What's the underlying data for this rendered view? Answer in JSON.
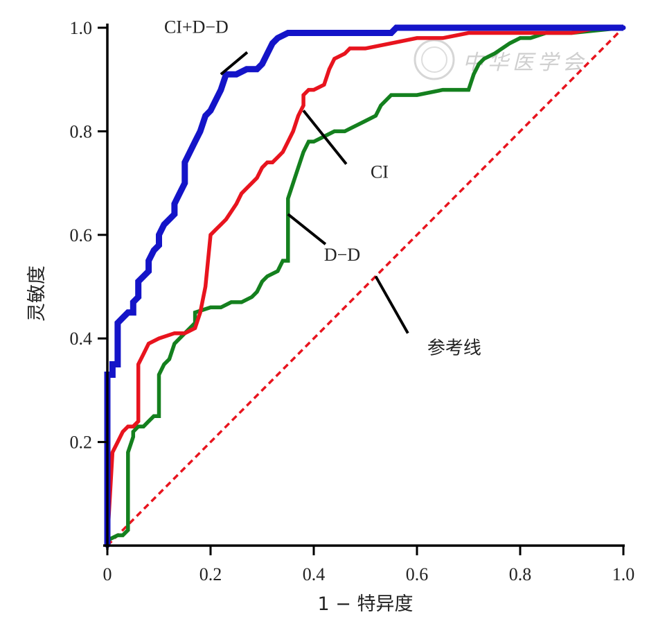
{
  "chart_data": {
    "type": "line",
    "xlabel": "1 − 特异度",
    "ylabel": "灵敏度",
    "xlim": [
      0,
      1.0
    ],
    "ylim": [
      0,
      1.0
    ],
    "x_ticks": [
      "0",
      "0.2",
      "0.4",
      "0.6",
      "0.8",
      "1.0"
    ],
    "y_ticks": [
      "0.2",
      "0.4",
      "0.6",
      "0.8",
      "1.0"
    ],
    "grid": false,
    "legend": "none",
    "series": [
      {
        "name": "CI+D−D",
        "color": "#1414c8",
        "x": [
          0,
          0,
          0.01,
          0.01,
          0.02,
          0.02,
          0.03,
          0.04,
          0.05,
          0.05,
          0.06,
          0.06,
          0.07,
          0.08,
          0.08,
          0.09,
          0.1,
          0.1,
          0.11,
          0.12,
          0.13,
          0.13,
          0.14,
          0.15,
          0.15,
          0.16,
          0.17,
          0.18,
          0.19,
          0.2,
          0.21,
          0.22,
          0.23,
          0.25,
          0.27,
          0.29,
          0.3,
          0.31,
          0.32,
          0.33,
          0.35,
          0.36,
          0.38,
          0.4,
          0.45,
          0.5,
          0.55,
          0.56,
          0.6,
          0.7,
          0.8,
          0.9,
          1.0
        ],
        "y": [
          0,
          0.33,
          0.33,
          0.35,
          0.35,
          0.43,
          0.44,
          0.45,
          0.45,
          0.47,
          0.48,
          0.51,
          0.52,
          0.53,
          0.55,
          0.57,
          0.58,
          0.6,
          0.62,
          0.63,
          0.64,
          0.66,
          0.68,
          0.7,
          0.74,
          0.76,
          0.78,
          0.8,
          0.83,
          0.84,
          0.86,
          0.88,
          0.91,
          0.91,
          0.92,
          0.92,
          0.93,
          0.95,
          0.97,
          0.98,
          0.99,
          0.99,
          0.99,
          0.99,
          0.99,
          0.99,
          0.99,
          1.0,
          1.0,
          1.0,
          1.0,
          1.0,
          1.0
        ]
      },
      {
        "name": "CI",
        "color": "#e8141e",
        "x": [
          0,
          0.01,
          0.02,
          0.03,
          0.04,
          0.05,
          0.06,
          0.06,
          0.07,
          0.08,
          0.1,
          0.13,
          0.15,
          0.17,
          0.18,
          0.19,
          0.2,
          0.21,
          0.22,
          0.23,
          0.25,
          0.26,
          0.27,
          0.28,
          0.29,
          0.3,
          0.31,
          0.32,
          0.33,
          0.34,
          0.35,
          0.36,
          0.37,
          0.38,
          0.38,
          0.39,
          0.4,
          0.42,
          0.43,
          0.44,
          0.46,
          0.47,
          0.5,
          0.55,
          0.6,
          0.65,
          0.7,
          0.8,
          0.9,
          0.95,
          1.0
        ],
        "y": [
          0.01,
          0.18,
          0.2,
          0.22,
          0.23,
          0.23,
          0.24,
          0.35,
          0.37,
          0.39,
          0.4,
          0.41,
          0.41,
          0.42,
          0.45,
          0.5,
          0.6,
          0.61,
          0.62,
          0.63,
          0.66,
          0.68,
          0.69,
          0.7,
          0.71,
          0.73,
          0.74,
          0.74,
          0.75,
          0.76,
          0.78,
          0.8,
          0.83,
          0.85,
          0.87,
          0.88,
          0.88,
          0.89,
          0.92,
          0.94,
          0.95,
          0.96,
          0.96,
          0.97,
          0.98,
          0.98,
          0.99,
          0.99,
          0.99,
          1.0,
          1.0
        ]
      },
      {
        "name": "D−D",
        "color": "#14801e",
        "x": [
          0,
          0.02,
          0.03,
          0.04,
          0.04,
          0.05,
          0.05,
          0.06,
          0.07,
          0.08,
          0.09,
          0.1,
          0.1,
          0.11,
          0.12,
          0.13,
          0.15,
          0.17,
          0.17,
          0.2,
          0.22,
          0.24,
          0.26,
          0.28,
          0.29,
          0.3,
          0.31,
          0.33,
          0.34,
          0.35,
          0.35,
          0.36,
          0.37,
          0.38,
          0.39,
          0.4,
          0.42,
          0.44,
          0.46,
          0.48,
          0.5,
          0.52,
          0.53,
          0.55,
          0.6,
          0.65,
          0.68,
          0.7,
          0.71,
          0.72,
          0.73,
          0.75,
          0.78,
          0.8,
          0.82,
          0.85,
          0.9,
          1.0
        ],
        "y": [
          0.01,
          0.02,
          0.02,
          0.03,
          0.18,
          0.21,
          0.22,
          0.23,
          0.23,
          0.24,
          0.25,
          0.25,
          0.33,
          0.35,
          0.36,
          0.39,
          0.41,
          0.43,
          0.45,
          0.46,
          0.46,
          0.47,
          0.47,
          0.48,
          0.49,
          0.51,
          0.52,
          0.53,
          0.55,
          0.55,
          0.67,
          0.7,
          0.73,
          0.76,
          0.78,
          0.78,
          0.79,
          0.8,
          0.8,
          0.81,
          0.82,
          0.83,
          0.85,
          0.87,
          0.87,
          0.88,
          0.88,
          0.88,
          0.91,
          0.93,
          0.94,
          0.95,
          0.97,
          0.98,
          0.98,
          0.99,
          0.99,
          1.0
        ]
      },
      {
        "name": "参考线",
        "color": "#e8141e",
        "dashed": true,
        "x": [
          0,
          1.0
        ],
        "y": [
          0,
          1.0
        ]
      }
    ],
    "annotations": [
      {
        "text": "CI+D−D",
        "target": [
          0.22,
          0.91
        ],
        "text_anchor": [
          0.11,
          0.99
        ]
      },
      {
        "text": "CI",
        "target": [
          0.38,
          0.84
        ],
        "text_anchor": [
          0.51,
          0.71
        ]
      },
      {
        "text": "D−D",
        "target": [
          0.35,
          0.64
        ],
        "text_anchor": [
          0.42,
          0.55
        ]
      },
      {
        "text": "参考线",
        "target": [
          0.52,
          0.52
        ],
        "text_anchor": [
          0.62,
          0.37
        ]
      }
    ],
    "watermark": "中华医学会"
  }
}
